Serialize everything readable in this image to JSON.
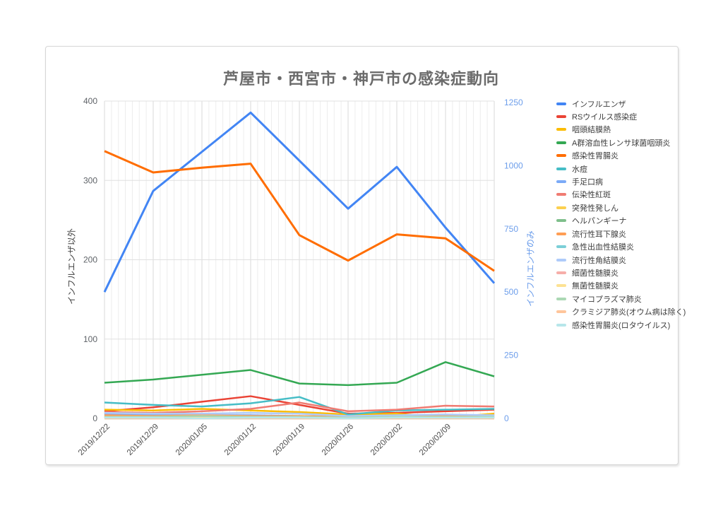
{
  "card": {
    "border_color": "#d6d6d6",
    "background": "#ffffff"
  },
  "title_color": "#6b6b6b",
  "chart_data": {
    "type": "line",
    "title": "芦屋市・西宮市・神戸市の感染症動向",
    "x_labels": [
      "2019/12/22",
      "2019/12/29",
      "2020/01/05",
      "2020/01/12",
      "2020/01/19",
      "2020/01/26",
      "2020/02/02",
      "2020/02/09",
      ""
    ],
    "x_minor_gridlines_per_week": 7,
    "grid": true,
    "legend_position": "right",
    "left_axis": {
      "title": "インフルエンザ以外",
      "min": 0,
      "max": 400,
      "ticks": [
        0,
        100,
        200,
        300,
        400
      ],
      "color": "#5f6368"
    },
    "right_axis": {
      "title": "インフルエンザのみ",
      "min": 0,
      "max": 1250,
      "ticks": [
        0,
        250,
        500,
        750,
        1000,
        1250
      ],
      "color": "#6d9eeb"
    },
    "series": [
      {
        "id": "influenza",
        "name": "インフルエンザ",
        "axis": "right",
        "color": "#4285F4",
        "width": 3,
        "values": [
          500,
          900,
          1055,
          1210,
          1020,
          830,
          995,
          755,
          535
        ]
      },
      {
        "id": "rs-virus-infection",
        "name": "RSウイルス感染症",
        "axis": "left",
        "color": "#EA4335",
        "width": 2.5,
        "values": [
          9,
          14,
          21,
          28,
          17,
          6,
          7,
          9,
          11
        ]
      },
      {
        "id": "pharyngoconjunctival-fever",
        "name": "咽頭結膜熱",
        "axis": "left",
        "color": "#FBBC04",
        "width": 2.5,
        "values": [
          11,
          10,
          12,
          10,
          8,
          5,
          6,
          1,
          6
        ]
      },
      {
        "id": "group-a-strep-pharyngitis",
        "name": "A群溶血性レンサ球菌咽頭炎",
        "axis": "left",
        "color": "#34A853",
        "width": 2.5,
        "values": [
          45,
          49,
          55,
          61,
          44,
          42,
          45,
          71,
          53
        ]
      },
      {
        "id": "infectious-gastroenteritis",
        "name": "感染性胃腸炎",
        "axis": "left",
        "color": "#FF6D01",
        "width": 3,
        "values": [
          337,
          310,
          316,
          321,
          231,
          199,
          232,
          227,
          186
        ]
      },
      {
        "id": "varicella",
        "name": "水痘",
        "axis": "left",
        "color": "#46BDC6",
        "width": 2.5,
        "values": [
          20,
          17,
          15,
          19,
          27,
          5,
          10,
          11,
          12
        ]
      },
      {
        "id": "hand-foot-mouth-disease",
        "name": "手足口病",
        "axis": "left",
        "color": "#7BAAF7",
        "width": 2.5,
        "values": [
          5,
          5,
          4,
          4,
          3,
          2,
          2,
          1,
          2
        ]
      },
      {
        "id": "erythema-infectiosum",
        "name": "伝染性紅斑",
        "axis": "left",
        "color": "#F07B72",
        "width": 2.5,
        "values": [
          8,
          7,
          9,
          12,
          20,
          9,
          11,
          16,
          15
        ]
      },
      {
        "id": "exanthem-subitum",
        "name": "突発性発しん",
        "axis": "left",
        "color": "#FCD04F",
        "width": 2.5,
        "values": [
          3,
          2,
          3,
          3,
          2,
          2,
          3,
          2,
          2
        ]
      },
      {
        "id": "herpangina",
        "name": "ヘルパンギーナ",
        "axis": "left",
        "color": "#7FBF8B",
        "width": 2.5,
        "values": [
          1,
          1,
          1,
          1,
          1,
          0,
          1,
          1,
          1
        ]
      },
      {
        "id": "mumps",
        "name": "流行性耳下腺炎",
        "axis": "left",
        "color": "#FF9E54",
        "width": 2.5,
        "values": [
          4,
          3,
          4,
          3,
          3,
          2,
          3,
          4,
          3
        ]
      },
      {
        "id": "acute-hemorrhagic-conjunctivitis",
        "name": "急性出血性結膜炎",
        "axis": "left",
        "color": "#7CCFD7",
        "width": 2.5,
        "values": [
          0,
          0,
          0,
          0,
          0,
          0,
          0,
          0,
          0
        ]
      },
      {
        "id": "epidemic-keratoconjunctivitis",
        "name": "流行性角結膜炎",
        "axis": "left",
        "color": "#AECBFA",
        "width": 2.5,
        "values": [
          7,
          6,
          6,
          7,
          6,
          3,
          4,
          5,
          4
        ]
      },
      {
        "id": "bacterial-meningitis",
        "name": "細菌性髄膜炎",
        "axis": "left",
        "color": "#F6AEA9",
        "width": 2.5,
        "values": [
          1,
          0,
          0,
          1,
          0,
          0,
          0,
          1,
          0
        ]
      },
      {
        "id": "aseptic-meningitis",
        "name": "無菌性髄膜炎",
        "axis": "left",
        "color": "#FDE293",
        "width": 2.5,
        "values": [
          2,
          1,
          1,
          2,
          1,
          1,
          1,
          1,
          1
        ]
      },
      {
        "id": "mycoplasma-pneumonia",
        "name": "マイコプラズマ肺炎",
        "axis": "left",
        "color": "#ABD8B4",
        "width": 2.5,
        "values": [
          2,
          2,
          3,
          2,
          2,
          1,
          2,
          2,
          2
        ]
      },
      {
        "id": "chlamydia-pneumonia",
        "name": "クラミジア肺炎(オウム病は除く)",
        "axis": "left",
        "color": "#FFC59B",
        "width": 2.5,
        "values": [
          0,
          0,
          0,
          0,
          0,
          0,
          0,
          0,
          0
        ]
      },
      {
        "id": "rotavirus-gastroenteritis",
        "name": "感染性胃腸炎(ロタウイルス)",
        "axis": "left",
        "color": "#B7E6EA",
        "width": 2.5,
        "values": [
          1,
          1,
          0,
          1,
          1,
          0,
          1,
          1,
          1
        ]
      }
    ]
  }
}
